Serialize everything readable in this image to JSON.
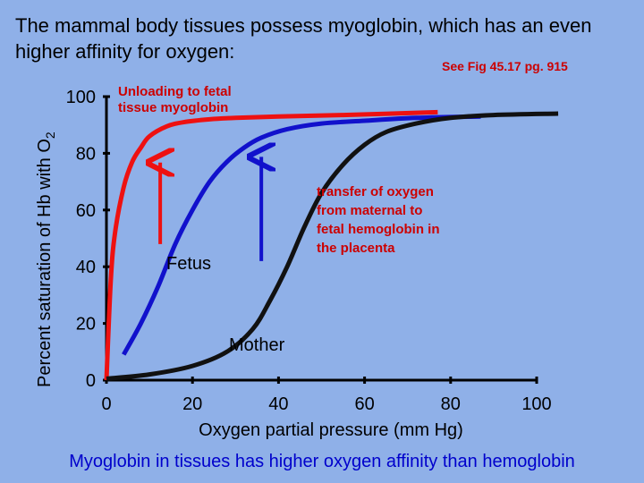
{
  "slide": {
    "title": "The mammal body tissues possess myoglobin, which has an even higher affinity for oxygen:",
    "fig_ref": "See Fig 45.17 pg. 915",
    "footer": "Myoglobin in tissues has higher oxygen affinity than hemoglobin"
  },
  "chart_data": {
    "type": "line",
    "xlabel": "Oxygen partial pressure (mm Hg)",
    "ylabel": "Percent saturation of Hb with O",
    "ylabel_sub": "2",
    "xlim": [
      0,
      100
    ],
    "ylim": [
      0,
      100
    ],
    "x_ticks": [
      0,
      20,
      40,
      60,
      80,
      100
    ],
    "y_ticks": [
      0,
      20,
      40,
      60,
      80,
      100
    ],
    "grid": false,
    "series": [
      {
        "name": "Myoglobin",
        "color": "#ee1111",
        "points": [
          [
            0,
            0
          ],
          [
            1,
            35
          ],
          [
            2,
            52
          ],
          [
            4,
            68
          ],
          [
            6,
            77
          ],
          [
            8,
            82
          ],
          [
            10,
            86
          ],
          [
            14,
            89.5
          ],
          [
            18,
            91
          ],
          [
            24,
            92
          ],
          [
            30,
            92.5
          ],
          [
            40,
            93
          ],
          [
            55,
            93.5
          ],
          [
            77,
            94.5
          ]
        ]
      },
      {
        "name": "Fetus",
        "color": "#1111cc",
        "points": [
          [
            4,
            9
          ],
          [
            8,
            20
          ],
          [
            12,
            33
          ],
          [
            16,
            48
          ],
          [
            20,
            60
          ],
          [
            24,
            70
          ],
          [
            28,
            77
          ],
          [
            32,
            82
          ],
          [
            36,
            85.5
          ],
          [
            42,
            88.5
          ],
          [
            50,
            90.5
          ],
          [
            60,
            91.5
          ],
          [
            72,
            92.5
          ],
          [
            87,
            93
          ]
        ]
      },
      {
        "name": "Mother",
        "color": "#111111",
        "points": [
          [
            0,
            0.5
          ],
          [
            10,
            2
          ],
          [
            20,
            5
          ],
          [
            28,
            10
          ],
          [
            34,
            18
          ],
          [
            38,
            28
          ],
          [
            42,
            40
          ],
          [
            46,
            54
          ],
          [
            50,
            66
          ],
          [
            55,
            76
          ],
          [
            60,
            83
          ],
          [
            65,
            87.5
          ],
          [
            72,
            90.5
          ],
          [
            80,
            92.5
          ],
          [
            90,
            93.5
          ],
          [
            105,
            94
          ]
        ]
      }
    ],
    "arrows": [
      {
        "color": "#ee1111",
        "x": 12.5,
        "y_from": 48,
        "y_to": 78
      },
      {
        "color": "#1111cc",
        "x": 36,
        "y_from": 42,
        "y_to": 80
      }
    ],
    "annotations": {
      "unloading": [
        "Unloading to fetal",
        "tissue myoglobin"
      ],
      "transfer": [
        "transfer of oxygen",
        "from maternal to",
        "fetal hemoglobin in",
        "the placenta"
      ],
      "fetus_label": "Fetus",
      "mother_label": "Mother"
    }
  }
}
